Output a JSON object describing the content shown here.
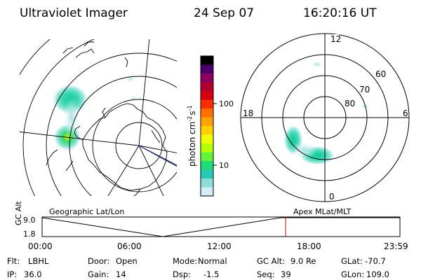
{
  "header": {
    "title": "Ultraviolet Imager",
    "date": "24 Sep 07",
    "time": "16:20:16 UT"
  },
  "colorbar": {
    "unit_label": "photon cm",
    "unit_sup1": "-2",
    "unit_mid": "s",
    "unit_sup2": "-1",
    "tick_upper": "100",
    "tick_lower": "10",
    "colors": [
      "#000000",
      "#4b006a",
      "#8a0060",
      "#b0002e",
      "#d20010",
      "#ff2c00",
      "#ff7000",
      "#ffa200",
      "#ffd000",
      "#f0ff00",
      "#b6ff00",
      "#64f23a",
      "#1edc78",
      "#28c8b4",
      "#8cdcd8",
      "#d2eef2"
    ]
  },
  "geo_map": {
    "label": "Geographic Lat/Lon"
  },
  "mlt_map": {
    "label": "Apex MLat/MLT",
    "hour_top": "12",
    "hour_bottom": "0",
    "hour_left": "18",
    "hour_right": "6",
    "lat_60": "60",
    "lat_70": "70",
    "lat_80": "80"
  },
  "alt_chart": {
    "ylabel": "GC Alt",
    "y_top": "9.0",
    "y_bottom": "1.8",
    "ticks": [
      "00:00",
      "06:00",
      "12:00",
      "18:00",
      "23:59"
    ],
    "current_time": "16:20"
  },
  "info": {
    "flt_label": "Flt:",
    "flt_value": "LBHL",
    "door_label": "Door:",
    "door_value": "Open",
    "mode_label": "Mode:",
    "mode_value": "Normal",
    "gcalt_label": "GC Alt:",
    "gcalt_value": "9.0 Re",
    "glat_label": "GLat:",
    "glat_value": "-70.7",
    "ip_label": "IP:",
    "ip_value": "36.0",
    "gain_label": "Gain:",
    "gain_value": "14",
    "dsp_label": "Dsp:",
    "dsp_value": "-1.5",
    "seq_label": "Seq:",
    "seq_value": "39",
    "glon_label": "GLon:",
    "glon_value": "109.0"
  }
}
